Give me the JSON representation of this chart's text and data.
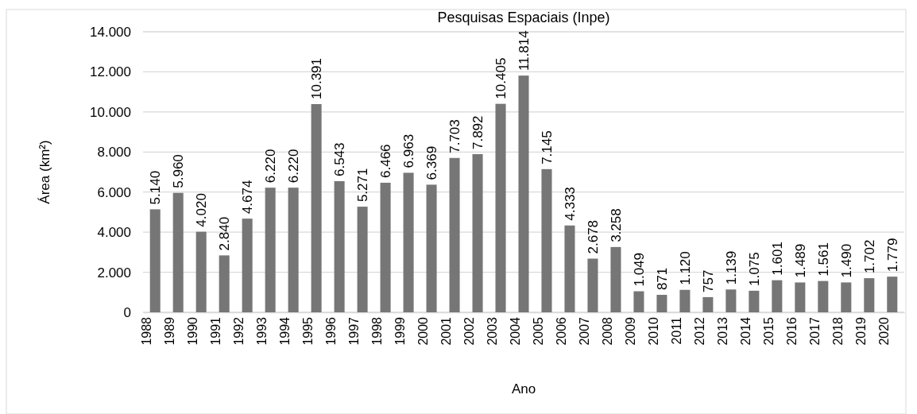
{
  "chart_data": {
    "type": "bar",
    "title": "Pesquisas Espaciais (Inpe)",
    "xlabel": "Ano",
    "ylabel": "Área (km²)",
    "categories": [
      "1988",
      "1989",
      "1990",
      "1991",
      "1992",
      "1993",
      "1994",
      "1995",
      "1996",
      "1997",
      "1998",
      "1999",
      "2000",
      "2001",
      "2002",
      "2003",
      "2004",
      "2005",
      "2006",
      "2007",
      "2008",
      "2009",
      "2010",
      "2011",
      "2012",
      "2013",
      "2014",
      "2015",
      "2016",
      "2017",
      "2018",
      "2019",
      "2020"
    ],
    "values": [
      5140,
      5960,
      4020,
      2840,
      4674,
      6220,
      6220,
      10391,
      6543,
      5271,
      6466,
      6963,
      6369,
      7703,
      7892,
      10405,
      11814,
      7145,
      4333,
      2678,
      3258,
      1049,
      871,
      1120,
      757,
      1139,
      1075,
      1601,
      1489,
      1561,
      1490,
      1702,
      1779
    ],
    "value_labels": [
      "5.140",
      "5.960",
      "4.020",
      "2.840",
      "4.674",
      "6.220",
      "6.220",
      "10.391",
      "6.543",
      "5.271",
      "6.466",
      "6.963",
      "6.369",
      "7.703",
      "7.892",
      "10.405",
      "11.814",
      "7.145",
      "4.333",
      "2.678",
      "3.258",
      "1.049",
      "871",
      "1.120",
      "757",
      "1.139",
      "1.075",
      "1.601",
      "1.489",
      "1.561",
      "1.490",
      "1.702",
      "1.779"
    ],
    "color": "#767676",
    "ylim": [
      0,
      14000
    ],
    "yticks": [
      {
        "value": 0,
        "label": "0"
      },
      {
        "value": 2000,
        "label": "2.000"
      },
      {
        "value": 4000,
        "label": "4.000"
      },
      {
        "value": 6000,
        "label": "6.000"
      },
      {
        "value": 8000,
        "label": "8.000"
      },
      {
        "value": 10000,
        "label": "10.000"
      },
      {
        "value": 12000,
        "label": "12.000"
      },
      {
        "value": 14000,
        "label": "14.000"
      }
    ],
    "grid": "y"
  }
}
